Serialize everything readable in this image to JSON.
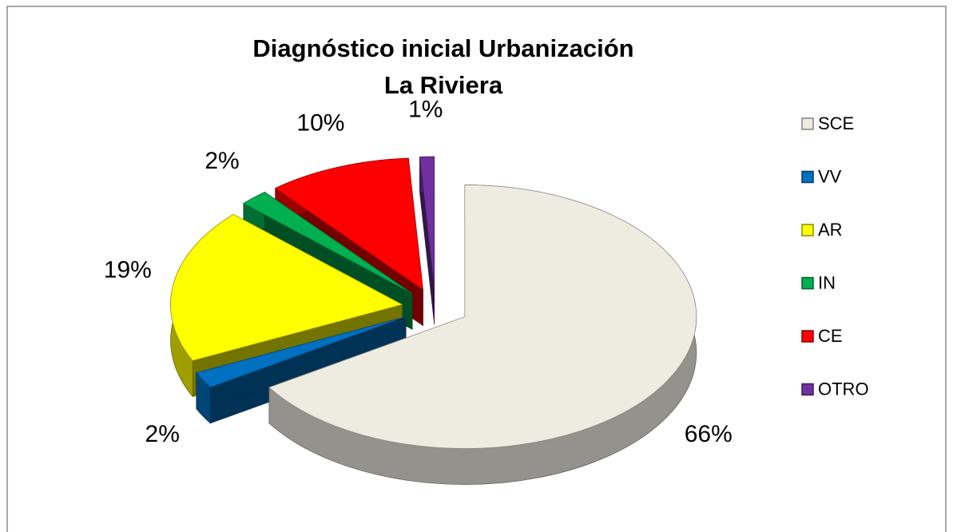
{
  "chart_data": {
    "type": "pie3d",
    "title": "Diagnóstico inicial Urbanización La Riviera",
    "categories": [
      "SCE",
      "VV",
      "AR",
      "IN",
      "CE",
      "OTRO"
    ],
    "values": [
      66,
      2,
      19,
      2,
      10,
      1
    ],
    "value_labels": [
      "66%",
      "2%",
      "19%",
      "2%",
      "10%",
      "1%"
    ],
    "colors": [
      "#eeece1",
      "#0070c0",
      "#ffff00",
      "#00b050",
      "#ff0000",
      "#7030a0"
    ],
    "legend": "right"
  }
}
